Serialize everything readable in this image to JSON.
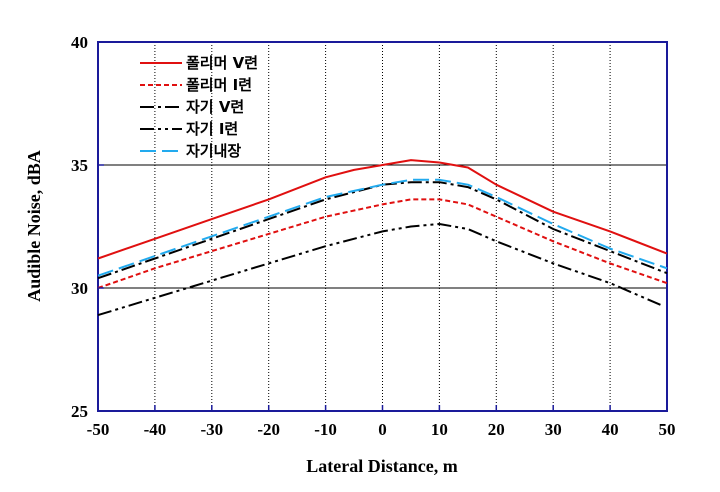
{
  "chart_data": {
    "type": "line",
    "xlabel": "Lateral Distance, m",
    "ylabel": "Audible  Noise, dBA",
    "xlim": [
      -50,
      50
    ],
    "ylim": [
      25,
      40
    ],
    "xticks": [
      -50,
      -40,
      -30,
      -20,
      -10,
      0,
      10,
      20,
      30,
      40,
      50
    ],
    "yticks": [
      25,
      30,
      35,
      40
    ],
    "grid": true,
    "legend_position": "top-left",
    "series": [
      {
        "name": "폴리머 V련",
        "color": "#e01010",
        "dash": "solid",
        "x": [
          -50,
          -40,
          -30,
          -20,
          -10,
          -5,
          0,
          5,
          10,
          15,
          20,
          30,
          40,
          50
        ],
        "y": [
          31.2,
          32.0,
          32.8,
          33.6,
          34.5,
          34.8,
          35.0,
          35.2,
          35.1,
          34.9,
          34.2,
          33.1,
          32.3,
          31.4
        ]
      },
      {
        "name": "폴리머 I련",
        "color": "#e01010",
        "dash": "short",
        "x": [
          -50,
          -40,
          -30,
          -20,
          -10,
          0,
          5,
          10,
          15,
          20,
          30,
          40,
          50
        ],
        "y": [
          30.0,
          30.8,
          31.5,
          32.2,
          32.9,
          33.4,
          33.6,
          33.6,
          33.4,
          32.9,
          31.9,
          31.0,
          30.2
        ]
      },
      {
        "name": "자기 V련",
        "color": "#000000",
        "dash": "dashdot",
        "x": [
          -50,
          -40,
          -30,
          -20,
          -10,
          0,
          5,
          10,
          15,
          20,
          30,
          40,
          50
        ],
        "y": [
          30.4,
          31.2,
          32.0,
          32.8,
          33.6,
          34.2,
          34.3,
          34.3,
          34.1,
          33.6,
          32.4,
          31.5,
          30.6
        ]
      },
      {
        "name": "자기 I련",
        "color": "#000000",
        "dash": "dashdotdot",
        "x": [
          -50,
          -40,
          -30,
          -20,
          -10,
          0,
          5,
          10,
          15,
          20,
          30,
          40,
          49
        ],
        "y": [
          28.9,
          29.6,
          30.3,
          31.0,
          31.7,
          32.3,
          32.5,
          32.6,
          32.4,
          31.9,
          31.0,
          30.2,
          29.3
        ]
      },
      {
        "name": "자기내장",
        "color": "#22aaee",
        "dash": "long",
        "x": [
          -50,
          -40,
          -30,
          -20,
          -10,
          0,
          5,
          10,
          15,
          20,
          30,
          40,
          50
        ],
        "y": [
          30.5,
          31.3,
          32.1,
          32.9,
          33.7,
          34.2,
          34.4,
          34.4,
          34.2,
          33.7,
          32.6,
          31.6,
          30.8
        ]
      }
    ]
  }
}
